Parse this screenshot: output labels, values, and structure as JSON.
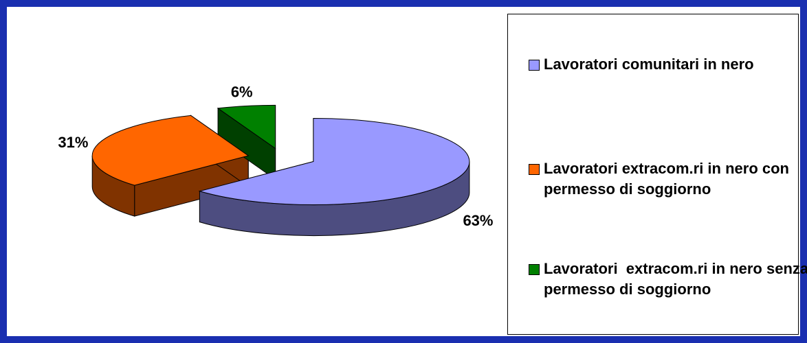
{
  "chart_data": {
    "type": "pie",
    "categories": [
      "Lavoratori comunitari in nero",
      "Lavoratori extracom.ri in nero con permesso di soggiorno",
      "Lavoratori  extracom.ri in nero senza permesso di soggiorno"
    ],
    "values": [
      63,
      31,
      6
    ],
    "value_labels": [
      "63%",
      "31%",
      "6%"
    ],
    "colors": [
      "#9999ff",
      "#ff6600",
      "#008000"
    ],
    "legend": "right"
  }
}
